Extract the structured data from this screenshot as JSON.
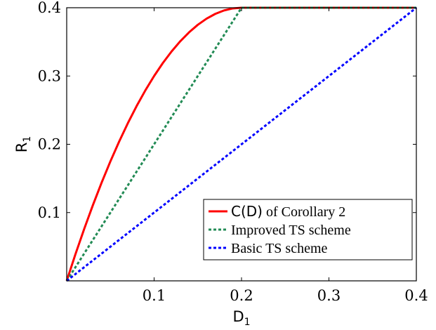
{
  "chart_data": {
    "type": "line",
    "xlabel": "D",
    "xlabel_sub": "1",
    "ylabel": "R",
    "ylabel_sub": "1",
    "xlim": [
      0,
      0.4
    ],
    "ylim": [
      0,
      0.4
    ],
    "xticks": [
      0.1,
      0.2,
      0.3,
      0.4
    ],
    "xtick_labels": [
      "0.1",
      "0.2",
      "0.3",
      "0.4"
    ],
    "yticks": [
      0.1,
      0.2,
      0.3,
      0.4
    ],
    "ytick_labels": [
      "0.1",
      "0.2",
      "0.3",
      "0.4"
    ],
    "grid": false,
    "legend_position": "bottom-right",
    "series": [
      {
        "name": "C(D) of Corollary 2",
        "legend_label_math": "C(D)",
        "legend_label_rest": " of Corollary 2",
        "color": "#ff0000",
        "style": "solid",
        "x": [
          0,
          0.01,
          0.02,
          0.03,
          0.04,
          0.05,
          0.06,
          0.07,
          0.08,
          0.09,
          0.1,
          0.11,
          0.12,
          0.13,
          0.14,
          0.15,
          0.16,
          0.17,
          0.18,
          0.19,
          0.2,
          0.3,
          0.4
        ],
        "y": [
          0,
          0.039,
          0.076,
          0.111,
          0.144,
          0.175,
          0.204,
          0.231,
          0.256,
          0.279,
          0.3,
          0.319,
          0.336,
          0.351,
          0.364,
          0.375,
          0.384,
          0.391,
          0.396,
          0.399,
          0.4,
          0.4,
          0.4
        ]
      },
      {
        "name": "Improved TS scheme",
        "color": "#228b55",
        "style": "dotted",
        "x": [
          0,
          0.2,
          0.4
        ],
        "y": [
          0,
          0.4,
          0.4
        ]
      },
      {
        "name": "Basic TS scheme",
        "color": "#0000ff",
        "style": "dotted",
        "x": [
          0,
          0.4
        ],
        "y": [
          0,
          0.4
        ]
      }
    ]
  }
}
